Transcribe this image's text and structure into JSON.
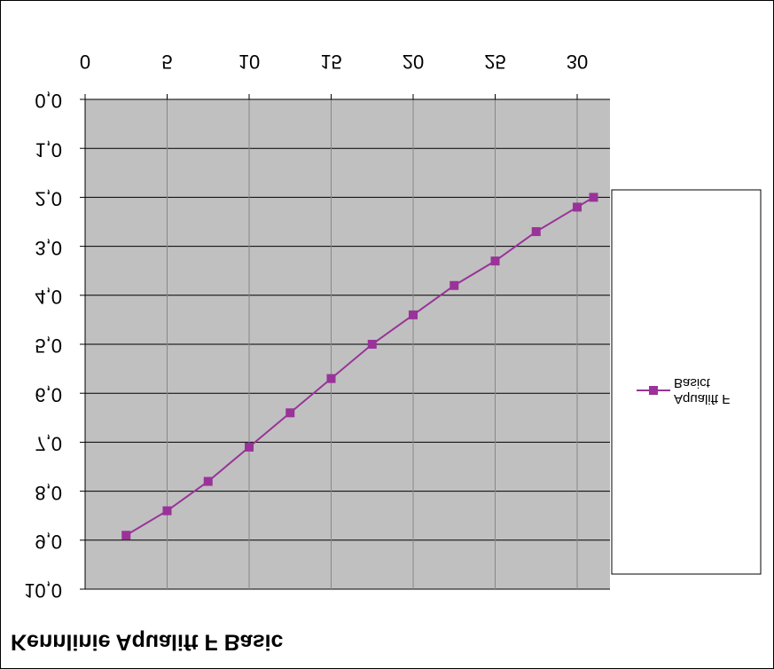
{
  "chart_data": {
    "type": "line",
    "title": "Kennlinie Aqualift F Basic",
    "x": [
      2.5,
      5,
      7.5,
      10,
      12.5,
      15,
      17.5,
      20,
      22.5,
      25,
      27.5,
      30,
      31
    ],
    "series": [
      {
        "name": "Aqualift F Basict",
        "color": "#993399",
        "values": [
          8.9,
          8.4,
          7.8,
          7.1,
          6.4,
          5.7,
          5.0,
          4.4,
          3.8,
          3.3,
          2.7,
          2.2,
          2.0
        ]
      }
    ],
    "xlim": [
      0,
      32
    ],
    "xticks": [
      0,
      5,
      10,
      15,
      20,
      25,
      30
    ],
    "ylim": [
      0,
      10
    ],
    "yticks": [
      {
        "value": 0,
        "label": "0,0"
      },
      {
        "value": 1,
        "label": "1,0"
      },
      {
        "value": 2,
        "label": "2,0"
      },
      {
        "value": 3,
        "label": "3,0"
      },
      {
        "value": 4,
        "label": "4,0"
      },
      {
        "value": 5,
        "label": "5,0"
      },
      {
        "value": 6,
        "label": "6,0"
      },
      {
        "value": 7,
        "label": "7,0"
      },
      {
        "value": 8,
        "label": "8,0"
      },
      {
        "value": 9,
        "label": "9,0"
      },
      {
        "value": 10,
        "label": "10,0"
      }
    ],
    "grid": true
  }
}
